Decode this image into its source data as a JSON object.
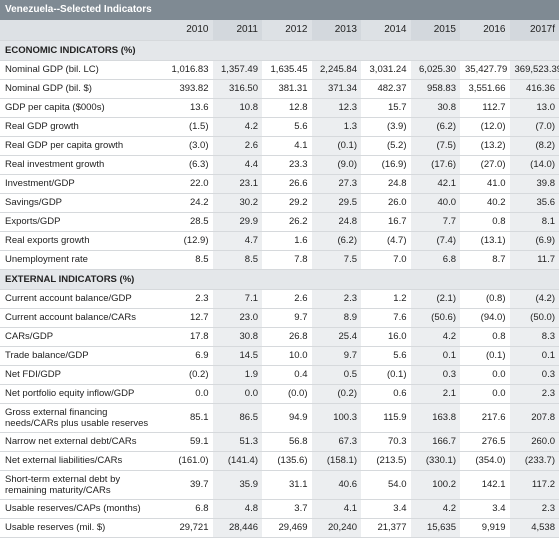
{
  "title": "Venezuela--Selected Indicators",
  "years": [
    "2010",
    "2011",
    "2012",
    "2013",
    "2014",
    "2015",
    "2016",
    "2017f"
  ],
  "sections": [
    {
      "label": "ECONOMIC INDICATORS (%)",
      "rows": [
        {
          "label": "Nominal GDP (bil. LC)",
          "values": [
            "1,016.83",
            "1,357.49",
            "1,635.45",
            "2,245.84",
            "3,031.24",
            "6,025.30",
            "35,427.79",
            "369,523.39"
          ]
        },
        {
          "label": "Nominal GDP (bil. $)",
          "values": [
            "393.82",
            "316.50",
            "381.31",
            "371.34",
            "482.37",
            "958.83",
            "3,551.66",
            "416.36"
          ]
        },
        {
          "label": "GDP per capita ($000s)",
          "values": [
            "13.6",
            "10.8",
            "12.8",
            "12.3",
            "15.7",
            "30.8",
            "112.7",
            "13.0"
          ]
        },
        {
          "label": "Real GDP growth",
          "values": [
            "(1.5)",
            "4.2",
            "5.6",
            "1.3",
            "(3.9)",
            "(6.2)",
            "(12.0)",
            "(7.0)"
          ]
        },
        {
          "label": "Real GDP per capita growth",
          "values": [
            "(3.0)",
            "2.6",
            "4.1",
            "(0.1)",
            "(5.2)",
            "(7.5)",
            "(13.2)",
            "(8.2)"
          ]
        },
        {
          "label": "Real investment growth",
          "values": [
            "(6.3)",
            "4.4",
            "23.3",
            "(9.0)",
            "(16.9)",
            "(17.6)",
            "(27.0)",
            "(14.0)"
          ]
        },
        {
          "label": "Investment/GDP",
          "values": [
            "22.0",
            "23.1",
            "26.6",
            "27.3",
            "24.8",
            "42.1",
            "41.0",
            "39.8"
          ]
        },
        {
          "label": "Savings/GDP",
          "values": [
            "24.2",
            "30.2",
            "29.2",
            "29.5",
            "26.0",
            "40.0",
            "40.2",
            "35.6"
          ]
        },
        {
          "label": "Exports/GDP",
          "values": [
            "28.5",
            "29.9",
            "26.2",
            "24.8",
            "16.7",
            "7.7",
            "0.8",
            "8.1"
          ]
        },
        {
          "label": "Real exports growth",
          "values": [
            "(12.9)",
            "4.7",
            "1.6",
            "(6.2)",
            "(4.7)",
            "(7.4)",
            "(13.1)",
            "(6.9)"
          ]
        },
        {
          "label": "Unemployment rate",
          "values": [
            "8.5",
            "8.5",
            "7.8",
            "7.5",
            "7.0",
            "6.8",
            "8.7",
            "11.7"
          ]
        }
      ]
    },
    {
      "label": "EXTERNAL INDICATORS (%)",
      "rows": [
        {
          "label": "Current account balance/GDP",
          "values": [
            "2.3",
            "7.1",
            "2.6",
            "2.3",
            "1.2",
            "(2.1)",
            "(0.8)",
            "(4.2)"
          ]
        },
        {
          "label": "Current account balance/CARs",
          "values": [
            "12.7",
            "23.0",
            "9.7",
            "8.9",
            "7.6",
            "(50.6)",
            "(94.0)",
            "(50.0)"
          ]
        },
        {
          "label": "CARs/GDP",
          "values": [
            "17.8",
            "30.8",
            "26.8",
            "25.4",
            "16.0",
            "4.2",
            "0.8",
            "8.3"
          ]
        },
        {
          "label": "Trade balance/GDP",
          "values": [
            "6.9",
            "14.5",
            "10.0",
            "9.7",
            "5.6",
            "0.1",
            "(0.1)",
            "0.1"
          ]
        },
        {
          "label": "Net FDI/GDP",
          "values": [
            "(0.2)",
            "1.9",
            "0.4",
            "0.5",
            "(0.1)",
            "0.3",
            "0.0",
            "0.3"
          ]
        },
        {
          "label": "Net portfolio equity inflow/GDP",
          "values": [
            "0.0",
            "0.0",
            "(0.0)",
            "(0.2)",
            "0.6",
            "2.1",
            "0.0",
            "2.3"
          ]
        },
        {
          "label": "Gross external financing needs/CARs plus usable reserves",
          "tall": true,
          "values": [
            "85.1",
            "86.5",
            "94.9",
            "100.3",
            "115.9",
            "163.8",
            "217.6",
            "207.8"
          ]
        },
        {
          "label": "Narrow net external debt/CARs",
          "values": [
            "59.1",
            "51.3",
            "56.8",
            "67.3",
            "70.3",
            "166.7",
            "276.5",
            "260.0"
          ]
        },
        {
          "label": "Net external liabilities/CARs",
          "values": [
            "(161.0)",
            "(141.4)",
            "(135.6)",
            "(158.1)",
            "(213.5)",
            "(330.1)",
            "(354.0)",
            "(233.7)"
          ]
        },
        {
          "label": "Short-term external debt by remaining maturity/CARs",
          "tall": true,
          "values": [
            "39.7",
            "35.9",
            "31.1",
            "40.6",
            "54.0",
            "100.2",
            "142.1",
            "117.2"
          ]
        },
        {
          "label": "Usable reserves/CAPs (months)",
          "values": [
            "6.8",
            "4.8",
            "3.7",
            "4.1",
            "3.4",
            "4.2",
            "3.4",
            "2.3"
          ]
        },
        {
          "label": "Usable reserves (mil. $)",
          "values": [
            "29,721",
            "28,446",
            "29,469",
            "20,240",
            "21,377",
            "15,635",
            "9,919",
            "4,538"
          ]
        }
      ]
    }
  ]
}
